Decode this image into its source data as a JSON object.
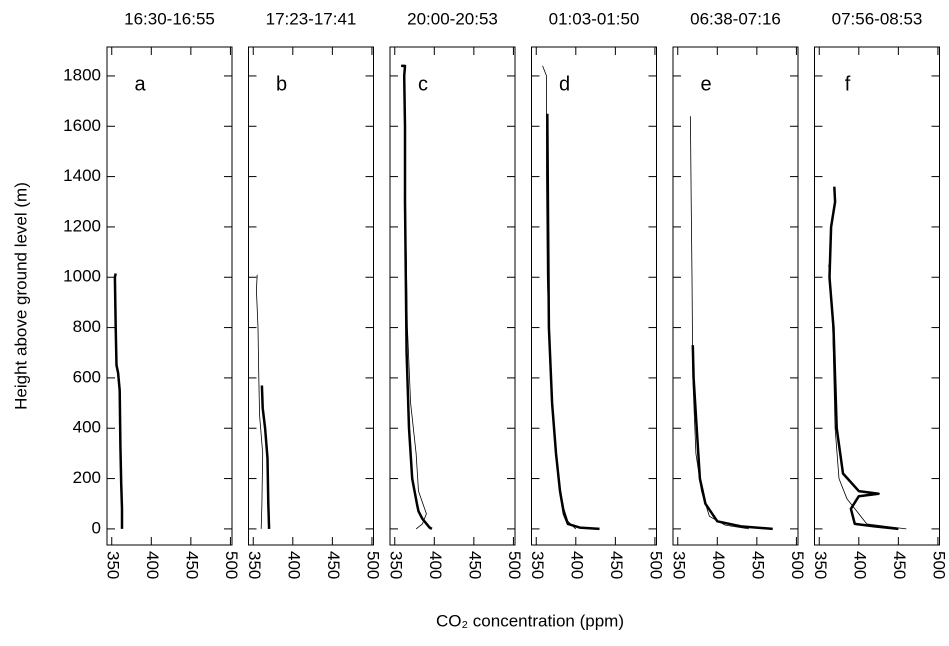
{
  "labels": {
    "y": "Height above ground level (m)",
    "x": "CO₂ concentration (ppm)"
  },
  "chart_data": [
    {
      "type": "line",
      "title": "16:30-16:55",
      "annotation": "a",
      "show_ytick_labels": true,
      "xlim": [
        344,
        502
      ],
      "xticks": [
        350,
        400,
        450,
        500
      ],
      "ylim": [
        -64,
        1915
      ],
      "yticks": [
        0,
        200,
        400,
        600,
        800,
        1000,
        1200,
        1400,
        1600,
        1800
      ],
      "series": [
        {
          "color": "#000000",
          "width": 2.5,
          "x": [
            363,
            363,
            362,
            361,
            360,
            358,
            356,
            355,
            354,
            355
          ],
          "y": [
            0,
            80,
            180,
            330,
            550,
            620,
            650,
            800,
            1000,
            1015
          ]
        }
      ]
    },
    {
      "type": "line",
      "title": "17:23-17:41",
      "annotation": "b",
      "show_ytick_labels": false,
      "xlim": [
        344,
        502
      ],
      "xticks": [
        350,
        400,
        450,
        500
      ],
      "ylim": [
        -64,
        1915
      ],
      "yticks": [
        0,
        200,
        400,
        600,
        800,
        1000,
        1200,
        1400,
        1600,
        1800
      ],
      "series": [
        {
          "color": "#000000",
          "width": 2.5,
          "x": [
            370,
            369,
            368,
            365,
            362,
            361
          ],
          "y": [
            0,
            100,
            280,
            400,
            480,
            570
          ]
        },
        {
          "color": "#000000",
          "width": 0.8,
          "x": [
            360,
            361,
            362,
            358,
            357,
            356,
            354,
            355
          ],
          "y": [
            0,
            100,
            300,
            450,
            600,
            800,
            950,
            1010
          ]
        }
      ]
    },
    {
      "type": "line",
      "title": "20:00-20:53",
      "annotation": "c",
      "show_ytick_labels": false,
      "xlim": [
        344,
        502
      ],
      "xticks": [
        350,
        400,
        450,
        500
      ],
      "ylim": [
        -64,
        1915
      ],
      "yticks": [
        0,
        200,
        400,
        600,
        800,
        1000,
        1200,
        1400,
        1600,
        1800
      ],
      "series": [
        {
          "color": "#000000",
          "width": 2.5,
          "x": [
            397,
            394,
            385,
            380,
            378,
            372,
            368,
            365,
            364,
            363,
            363,
            362,
            363,
            358
          ],
          "y": [
            0,
            5,
            40,
            70,
            100,
            200,
            400,
            700,
            1000,
            1300,
            1600,
            1800,
            1840,
            1840
          ]
        },
        {
          "color": "#000000",
          "width": 0.8,
          "x": [
            377,
            385,
            390,
            380,
            377,
            370,
            366,
            364,
            363,
            363
          ],
          "y": [
            0,
            20,
            60,
            150,
            300,
            500,
            800,
            1200,
            1500,
            1800
          ]
        }
      ]
    },
    {
      "type": "line",
      "title": "01:03-01:50",
      "annotation": "d",
      "show_ytick_labels": false,
      "xlim": [
        344,
        502
      ],
      "xticks": [
        350,
        400,
        450,
        500
      ],
      "ylim": [
        -64,
        1915
      ],
      "yticks": [
        0,
        200,
        400,
        600,
        800,
        1000,
        1200,
        1400,
        1600,
        1800
      ],
      "series": [
        {
          "color": "#000000",
          "width": 2.5,
          "x": [
            430,
            405,
            390,
            385,
            380,
            375,
            370,
            366,
            365,
            364
          ],
          "y": [
            0,
            5,
            20,
            60,
            150,
            300,
            500,
            800,
            1200,
            1650
          ]
        },
        {
          "color": "#000000",
          "width": 0.8,
          "x": [
            400,
            390,
            385,
            378,
            372,
            367,
            364,
            363,
            363,
            358
          ],
          "y": [
            0,
            30,
            80,
            200,
            400,
            700,
            1000,
            1400,
            1800,
            1840
          ]
        }
      ]
    },
    {
      "type": "line",
      "title": "06:38-07:16",
      "annotation": "e",
      "show_ytick_labels": false,
      "xlim": [
        344,
        502
      ],
      "xticks": [
        350,
        400,
        450,
        500
      ],
      "ylim": [
        -64,
        1915
      ],
      "yticks": [
        0,
        200,
        400,
        600,
        800,
        1000,
        1200,
        1400,
        1600,
        1800
      ],
      "series": [
        {
          "color": "#000000",
          "width": 2.5,
          "x": [
            470,
            430,
            400,
            385,
            378,
            374,
            370,
            369
          ],
          "y": [
            0,
            10,
            30,
            100,
            200,
            400,
            600,
            730
          ]
        },
        {
          "color": "#000000",
          "width": 0.8,
          "x": [
            440,
            410,
            390,
            380,
            373,
            369,
            368,
            367,
            366
          ],
          "y": [
            0,
            15,
            50,
            150,
            300,
            600,
            1000,
            1300,
            1640
          ]
        }
      ]
    },
    {
      "type": "line",
      "title": "07:56-08:53",
      "annotation": "f",
      "show_ytick_labels": false,
      "xlim": [
        344,
        502
      ],
      "xticks": [
        350,
        400,
        450,
        500
      ],
      "ylim": [
        -64,
        1915
      ],
      "yticks": [
        0,
        200,
        400,
        600,
        800,
        1000,
        1200,
        1400,
        1600,
        1800
      ],
      "series": [
        {
          "color": "#000000",
          "width": 2.5,
          "x": [
            450,
            420,
            395,
            390,
            400,
            425,
            400,
            380,
            372,
            368,
            363,
            365,
            370,
            369
          ],
          "y": [
            0,
            10,
            20,
            80,
            130,
            140,
            150,
            220,
            400,
            800,
            1000,
            1200,
            1300,
            1360
          ]
        },
        {
          "color": "#000000",
          "width": 0.8,
          "x": [
            460,
            410,
            400,
            385,
            375,
            370,
            367,
            362
          ],
          "y": [
            0,
            20,
            60,
            120,
            200,
            400,
            800,
            1050
          ]
        }
      ]
    }
  ]
}
